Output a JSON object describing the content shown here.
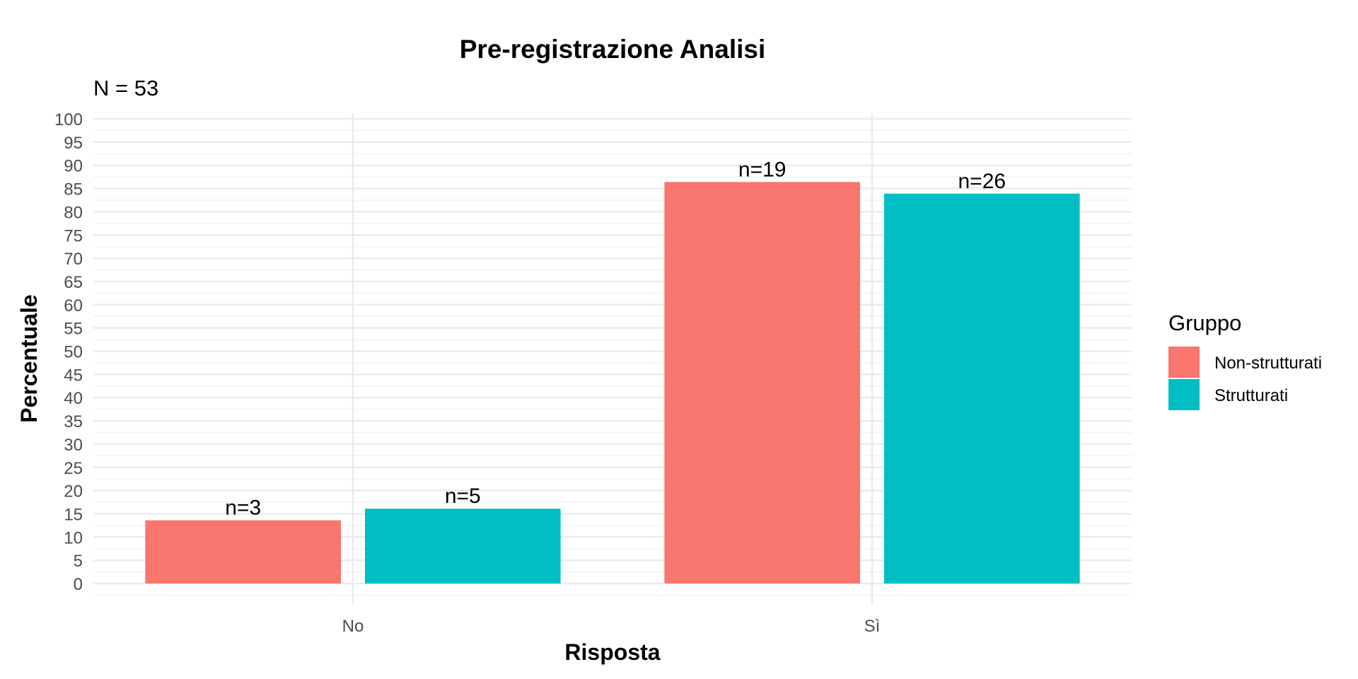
{
  "chart_data": {
    "type": "bar",
    "title": "Pre-registrazione Analisi",
    "subtitle": "N = 53",
    "xlabel": "Risposta",
    "ylabel": "Percentuale",
    "categories": [
      "No",
      "Sì"
    ],
    "series": [
      {
        "name": "Non-strutturati",
        "color": "#F8766D",
        "values": [
          13.6,
          86.4
        ],
        "labels": [
          "n=3",
          "n=19"
        ]
      },
      {
        "name": "Strutturati",
        "color": "#00BFC4",
        "values": [
          16.1,
          83.9
        ],
        "labels": [
          "n=5",
          "n=26"
        ]
      }
    ],
    "ylim": [
      0,
      100
    ],
    "yticks": [
      0,
      5,
      10,
      15,
      20,
      25,
      30,
      35,
      40,
      45,
      50,
      55,
      60,
      65,
      70,
      75,
      80,
      85,
      90,
      95,
      100
    ],
    "legend": {
      "title": "Gruppo",
      "position": "right"
    },
    "grid": true
  }
}
